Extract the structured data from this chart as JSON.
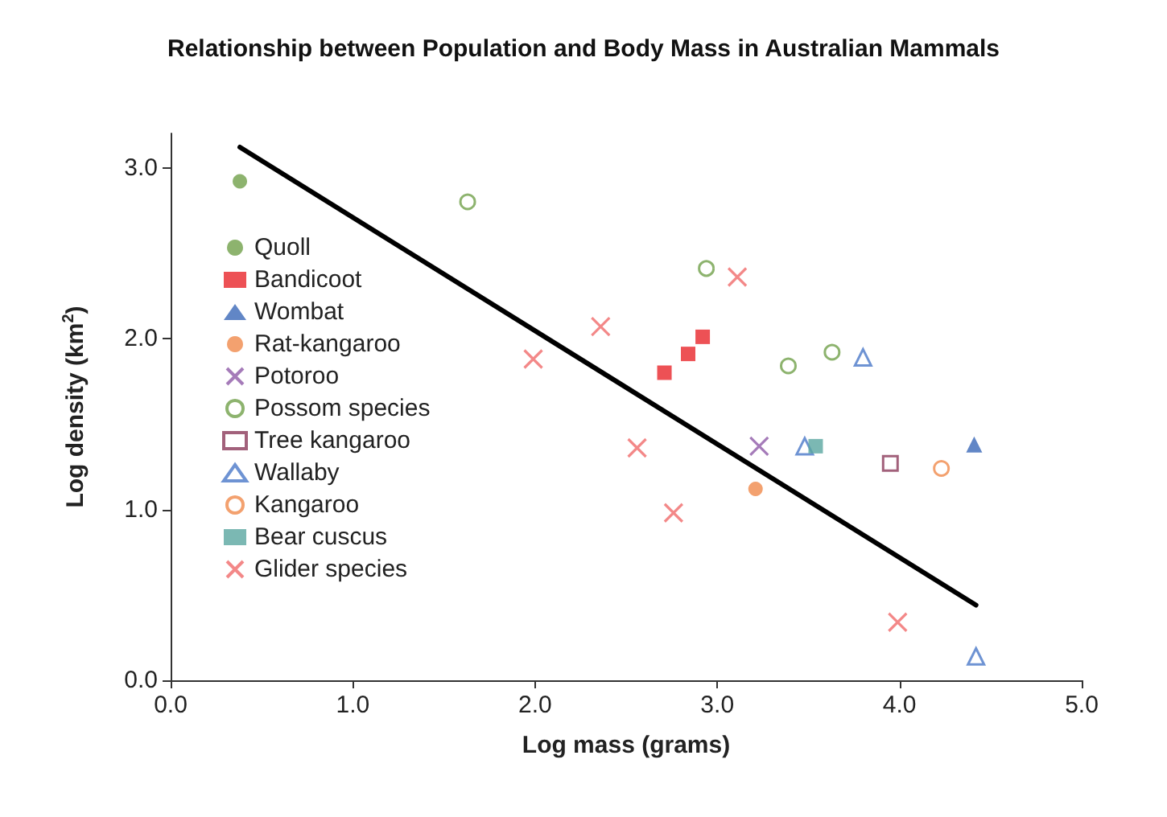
{
  "chart_data": {
    "type": "scatter",
    "title": "Relationship between Population and Body Mass in Australian Mammals",
    "xlabel": "Log mass (grams)",
    "ylabel": "Log density (km$^{2}$)",
    "xlim": [
      0,
      5
    ],
    "ylim": [
      0,
      3.2
    ],
    "xticks": [
      {
        "value": 0,
        "label": "0.0"
      },
      {
        "value": 1,
        "label": "1.0"
      },
      {
        "value": 2,
        "label": "2.0"
      },
      {
        "value": 3,
        "label": "3.0"
      },
      {
        "value": 4,
        "label": "4.0"
      },
      {
        "value": 5,
        "label": "5.0"
      }
    ],
    "yticks": [
      {
        "value": 0,
        "label": "0.0"
      },
      {
        "value": 1,
        "label": "1.0"
      },
      {
        "value": 2,
        "label": "2.0"
      },
      {
        "value": 3,
        "label": "3.0"
      }
    ],
    "grid": false,
    "legend": "left",
    "series": [
      {
        "name": "Quoll",
        "color": "#70a04a",
        "marker": "circle",
        "x": [
          0.38
        ],
        "values": [
          2.92
        ]
      },
      {
        "name": "Bandicoot",
        "color": "#e8262a",
        "marker": "square",
        "x": [
          2.71,
          2.84,
          2.92
        ],
        "values": [
          1.8,
          1.91,
          2.01
        ]
      },
      {
        "name": "Wombat",
        "color": "#3a68b8",
        "marker": "triangle",
        "x": [
          4.41
        ],
        "values": [
          1.38
        ]
      },
      {
        "name": "Rat-kangaroo",
        "color": "#f08a4b",
        "marker": "circle",
        "x": [
          3.21
        ],
        "values": [
          1.12
        ]
      },
      {
        "name": "Potoroo",
        "color": "#8e5aa8",
        "marker": "cross",
        "x": [
          3.23
        ],
        "values": [
          1.37
        ]
      },
      {
        "name": "Possom species",
        "color": "#70a04a",
        "marker": "circle-open",
        "x": [
          1.63,
          2.94,
          3.39,
          3.63
        ],
        "values": [
          2.8,
          2.41,
          1.84,
          1.92
        ]
      },
      {
        "name": "Tree kangaroo",
        "color": "#8b3a5a",
        "marker": "square-open",
        "x": [
          3.95
        ],
        "values": [
          1.27
        ]
      },
      {
        "name": "Wallaby",
        "color": "#4a78c8",
        "marker": "triangle-open",
        "x": [
          3.8,
          3.48,
          4.42
        ],
        "values": [
          1.89,
          1.37,
          0.14
        ]
      },
      {
        "name": "Kangaroo",
        "color": "#f08a4b",
        "marker": "circle-open",
        "x": [
          4.23
        ],
        "values": [
          1.24
        ]
      },
      {
        "name": "Bear cuscus",
        "color": "#5aa6a0",
        "marker": "square",
        "x": [
          3.54
        ],
        "values": [
          1.37
        ]
      },
      {
        "name": "Glider species",
        "color": "#f06a6a",
        "marker": "cross",
        "x": [
          3.11,
          2.36,
          1.99,
          2.56,
          2.76,
          3.99
        ],
        "values": [
          2.36,
          2.07,
          1.88,
          1.36,
          0.98,
          0.34
        ]
      },
      {
        "type": "line",
        "color": "#000000",
        "marker": "none",
        "x": [
          0.38,
          4.42
        ],
        "values": [
          3.12,
          0.44
        ]
      }
    ]
  }
}
